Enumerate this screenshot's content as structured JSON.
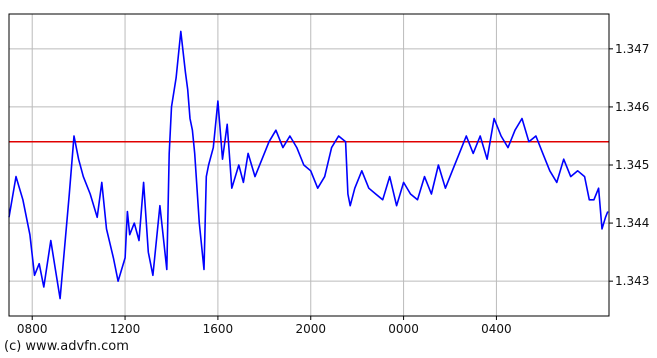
{
  "chart_data": {
    "type": "line",
    "title": "",
    "xlabel": "",
    "ylabel": "",
    "x_ticks": [
      "0800",
      "1200",
      "1600",
      "2000",
      "0000",
      "0400"
    ],
    "x_tick_hours_elapsed": [
      1,
      5,
      9,
      13,
      17,
      21
    ],
    "x_range_hours_elapsed": [
      0,
      25.85
    ],
    "y_ticks": [
      1.343,
      1.344,
      1.345,
      1.346,
      1.347
    ],
    "ylim": [
      1.3424,
      1.3476
    ],
    "grid": true,
    "reference_line": {
      "value": 1.3454,
      "color": "#e00000"
    },
    "series": [
      {
        "color": "#0000ff",
        "x": [
          0,
          0.3,
          0.6,
          0.9,
          1.1,
          1.3,
          1.5,
          1.8,
          2.0,
          2.2,
          2.4,
          2.6,
          2.8,
          3.0,
          3.2,
          3.5,
          3.8,
          4.0,
          4.2,
          4.5,
          4.7,
          5.0,
          5.1,
          5.2,
          5.4,
          5.6,
          5.8,
          6.0,
          6.2,
          6.5,
          6.8,
          6.9,
          7.0,
          7.2,
          7.4,
          7.6,
          7.7,
          7.8,
          7.9,
          8.0,
          8.2,
          8.4,
          8.5,
          8.6,
          8.8,
          9.0,
          9.2,
          9.4,
          9.6,
          9.9,
          10.1,
          10.3,
          10.6,
          10.9,
          11.2,
          11.5,
          11.8,
          12.1,
          12.4,
          12.7,
          13.0,
          13.3,
          13.6,
          13.9,
          14.2,
          14.5,
          14.6,
          14.7,
          14.9,
          15.2,
          15.5,
          15.8,
          16.1,
          16.4,
          16.7,
          17.0,
          17.3,
          17.6,
          17.9,
          18.2,
          18.5,
          18.8,
          19.1,
          19.4,
          19.7,
          20.0,
          20.3,
          20.6,
          20.9,
          21.2,
          21.5,
          21.8,
          22.1,
          22.4,
          22.7,
          23.0,
          23.3,
          23.6,
          23.9,
          24.2,
          24.5,
          24.8,
          25.0,
          25.2,
          25.4,
          25.55,
          25.7,
          25.8
        ],
        "values": [
          1.3441,
          1.3448,
          1.3444,
          1.3438,
          1.3431,
          1.3433,
          1.3429,
          1.3437,
          1.3432,
          1.3427,
          1.3436,
          1.3445,
          1.3455,
          1.3451,
          1.3448,
          1.3445,
          1.3441,
          1.3447,
          1.3439,
          1.3434,
          1.343,
          1.3434,
          1.3442,
          1.3438,
          1.344,
          1.3437,
          1.3447,
          1.3435,
          1.3431,
          1.3443,
          1.3432,
          1.3452,
          1.346,
          1.3465,
          1.3473,
          1.3466,
          1.3463,
          1.3458,
          1.3456,
          1.3452,
          1.344,
          1.3432,
          1.3448,
          1.345,
          1.3453,
          1.3461,
          1.3451,
          1.3457,
          1.3446,
          1.345,
          1.3447,
          1.3452,
          1.3448,
          1.3451,
          1.3454,
          1.3456,
          1.3453,
          1.3455,
          1.3453,
          1.345,
          1.3449,
          1.3446,
          1.3448,
          1.3453,
          1.3455,
          1.3454,
          1.3445,
          1.3443,
          1.3446,
          1.3449,
          1.3446,
          1.3445,
          1.3444,
          1.3448,
          1.3443,
          1.3447,
          1.3445,
          1.3444,
          1.3448,
          1.3445,
          1.345,
          1.3446,
          1.3449,
          1.3452,
          1.3455,
          1.3452,
          1.3455,
          1.3451,
          1.3458,
          1.3455,
          1.3453,
          1.3456,
          1.3458,
          1.3454,
          1.3455,
          1.3452,
          1.3449,
          1.3447,
          1.3451,
          1.3448,
          1.3449,
          1.3448,
          1.3444,
          1.3444,
          1.3446,
          1.3439,
          1.3441,
          1.3442
        ]
      }
    ]
  },
  "footer": {
    "credit": "(c) www.advfn.com"
  }
}
